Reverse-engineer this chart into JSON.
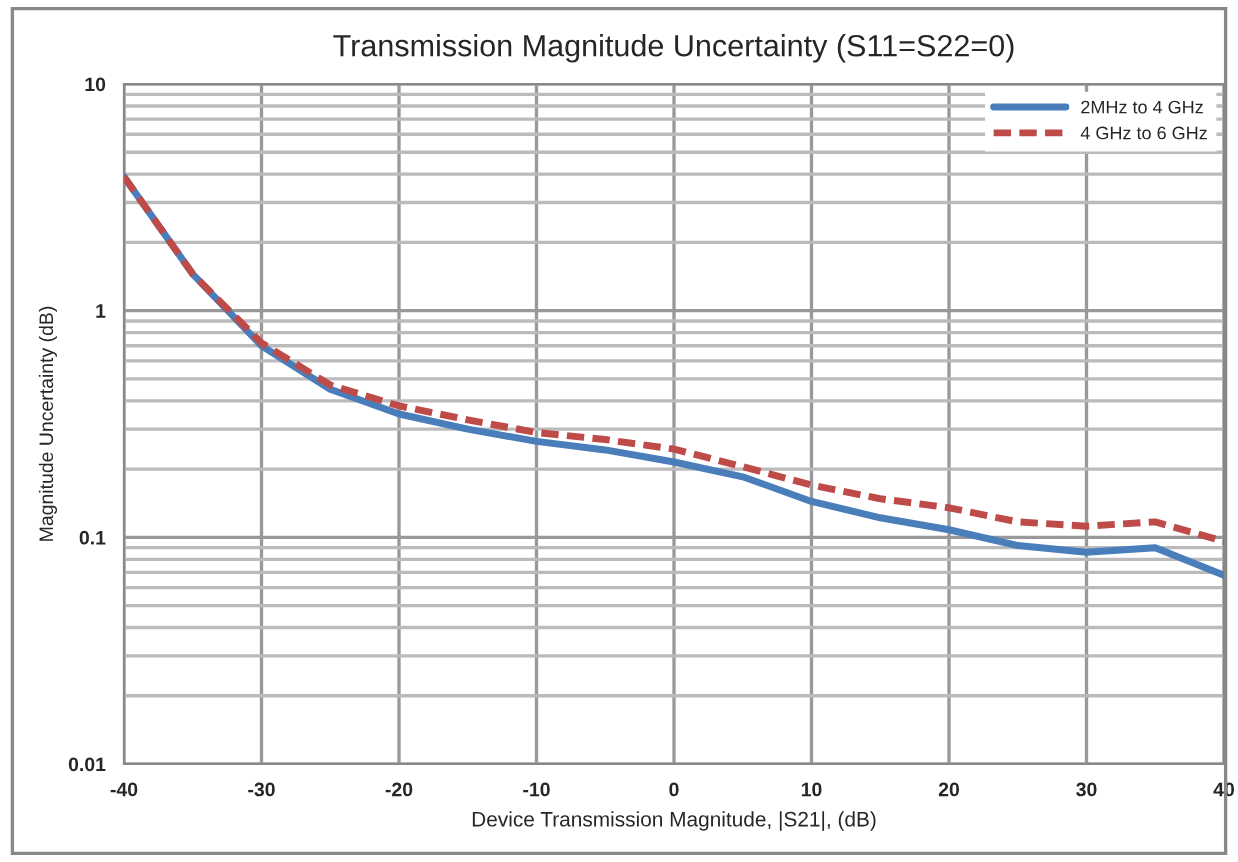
{
  "chart_data": {
    "type": "line",
    "title": "Transmission Magnitude Uncertainty (S11=S22=0)",
    "xlabel": "Device Transmission Magnitude, |S21|, (dB)",
    "ylabel": "Magnitude Uncertainty (dB)",
    "x": [
      -40,
      -35,
      -30,
      -25,
      -20,
      -15,
      -10,
      -5,
      0,
      5,
      10,
      15,
      20,
      25,
      30,
      35,
      40
    ],
    "series": [
      {
        "name": "2MHz to 4 GHz",
        "color": "#4a7ebb",
        "line_style": "solid",
        "values": [
          3.9,
          1.45,
          0.7,
          0.45,
          0.35,
          0.3,
          0.265,
          0.243,
          0.215,
          0.185,
          0.144,
          0.122,
          0.108,
          0.092,
          0.086,
          0.09,
          0.068
        ]
      },
      {
        "name": "4 GHz to 6 GHz",
        "color": "#be4b48",
        "line_style": "dashed",
        "values": [
          3.9,
          1.45,
          0.72,
          0.47,
          0.38,
          0.33,
          0.29,
          0.27,
          0.245,
          0.205,
          0.17,
          0.148,
          0.135,
          0.117,
          0.112,
          0.117,
          0.096
        ]
      }
    ],
    "log": "y",
    "xlim": [
      -40,
      40
    ],
    "xticks": [
      -40,
      -30,
      -20,
      -10,
      0,
      10,
      20,
      30,
      40
    ],
    "ylim": [
      0.01,
      10
    ],
    "yticks": [
      0.01,
      0.1,
      1,
      10
    ],
    "grid": true,
    "legend": "top right"
  }
}
